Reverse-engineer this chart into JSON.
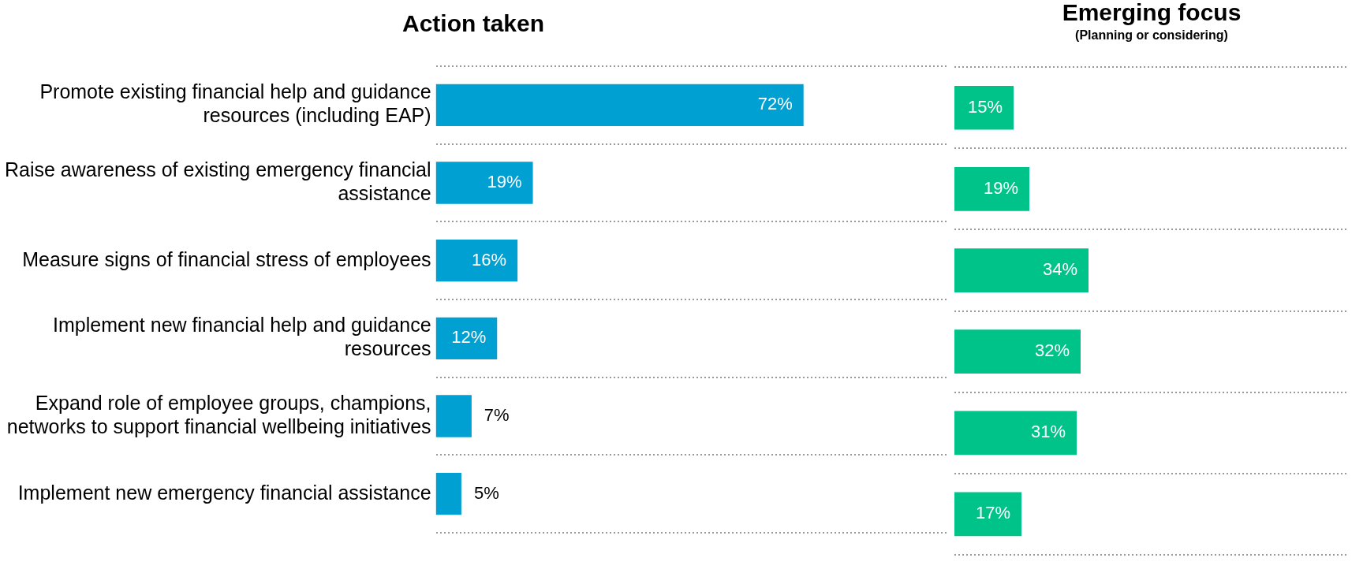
{
  "chart_data": [
    {
      "type": "bar",
      "orientation": "horizontal",
      "title": "Action taken",
      "categories": [
        "Promote existing financial help and guidance resources (including EAP)",
        "Raise awareness of existing emergency financial assistance",
        "Measure signs of financial stress of employees",
        "Implement new financial help and guidance resources",
        "Expand role of employee groups, champions, networks to support financial wellbeing initiatives",
        "Implement new emergency financial assistance"
      ],
      "values": [
        72,
        19,
        16,
        12,
        7,
        5
      ],
      "color": "#00a0d2",
      "xlim": [
        0,
        100
      ],
      "data_labels": true,
      "value_labels": [
        "72%",
        "19%",
        "16%",
        "12%",
        "7%",
        "5%"
      ],
      "grid": "y",
      "tick_labels": "y",
      "line_style": "dotted"
    },
    {
      "type": "bar",
      "orientation": "horizontal",
      "title": "Emerging focus",
      "subtitle": "(Planning or considering)",
      "values": [
        15,
        19,
        34,
        32,
        31,
        17
      ],
      "color": "#00c389",
      "xlim": [
        0,
        100
      ],
      "data_labels": true,
      "value_labels": [
        "15%",
        "19%",
        "34%",
        "32%",
        "31%",
        "17%"
      ],
      "grid": "y",
      "tick_labels": false,
      "line_style": "dotted"
    }
  ]
}
